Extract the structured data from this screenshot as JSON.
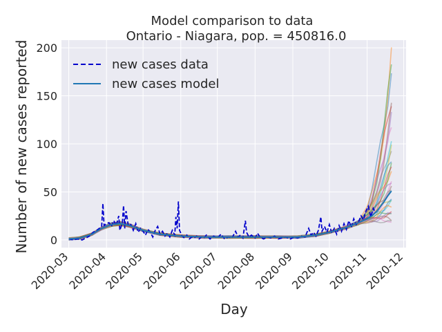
{
  "chart_data": {
    "type": "line",
    "title": "Model comparison to data",
    "subtitle": "Ontario - Niagara, pop. = 450816.0",
    "xlabel": "Day",
    "ylabel": "Number of new cases reported",
    "x_range": [
      "2020-02-24",
      "2020-12-03"
    ],
    "ylim": [
      -8,
      208
    ],
    "x_ticks": [
      "2020-03",
      "2020-04",
      "2020-05",
      "2020-06",
      "2020-07",
      "2020-08",
      "2020-09",
      "2020-10",
      "2020-11",
      "2020-12"
    ],
    "y_ticks": [
      0,
      50,
      100,
      150,
      200
    ],
    "grid": true,
    "legend_placement": "top-left",
    "colors": {
      "background": "#eaeaf2",
      "grid": "#ffffff",
      "data": "#0000cc",
      "model": "#1f77b4",
      "text": "#262626"
    },
    "ensemble_colors": [
      "#1f77b4",
      "#ff7f0e",
      "#2ca02c",
      "#d62728",
      "#9467bd",
      "#8c564b",
      "#e377c2",
      "#7f7f7f",
      "#bcbd22",
      "#17becf"
    ],
    "series": [
      {
        "name": "new cases data",
        "style": "dashed",
        "points": [
          [
            "2020-03-01",
            1
          ],
          [
            "2020-03-05",
            0
          ],
          [
            "2020-03-08",
            1
          ],
          [
            "2020-03-12",
            0
          ],
          [
            "2020-03-15",
            2
          ],
          [
            "2020-03-18",
            4
          ],
          [
            "2020-03-21",
            8
          ],
          [
            "2020-03-24",
            10
          ],
          [
            "2020-03-26",
            12
          ],
          [
            "2020-03-28",
            14
          ],
          [
            "2020-03-29",
            38
          ],
          [
            "2020-03-30",
            15
          ],
          [
            "2020-04-01",
            17
          ],
          [
            "2020-04-03",
            18
          ],
          [
            "2020-04-05",
            14
          ],
          [
            "2020-04-07",
            20
          ],
          [
            "2020-04-09",
            15
          ],
          [
            "2020-04-11",
            25
          ],
          [
            "2020-04-12",
            10
          ],
          [
            "2020-04-14",
            18
          ],
          [
            "2020-04-15",
            36
          ],
          [
            "2020-04-16",
            12
          ],
          [
            "2020-04-17",
            30
          ],
          [
            "2020-04-19",
            14
          ],
          [
            "2020-04-21",
            16
          ],
          [
            "2020-04-23",
            10
          ],
          [
            "2020-04-25",
            17
          ],
          [
            "2020-04-27",
            8
          ],
          [
            "2020-04-29",
            12
          ],
          [
            "2020-05-01",
            9
          ],
          [
            "2020-05-03",
            5
          ],
          [
            "2020-05-05",
            11
          ],
          [
            "2020-05-07",
            8
          ],
          [
            "2020-05-09",
            3
          ],
          [
            "2020-05-11",
            10
          ],
          [
            "2020-05-13",
            14
          ],
          [
            "2020-05-15",
            6
          ],
          [
            "2020-05-17",
            9
          ],
          [
            "2020-05-19",
            4
          ],
          [
            "2020-05-21",
            7
          ],
          [
            "2020-05-23",
            3
          ],
          [
            "2020-05-25",
            10
          ],
          [
            "2020-05-27",
            5
          ],
          [
            "2020-05-28",
            24
          ],
          [
            "2020-05-29",
            12
          ],
          [
            "2020-05-30",
            40
          ],
          [
            "2020-05-31",
            10
          ],
          [
            "2020-06-02",
            4
          ],
          [
            "2020-06-04",
            2
          ],
          [
            "2020-06-06",
            5
          ],
          [
            "2020-06-08",
            1
          ],
          [
            "2020-06-10",
            3
          ],
          [
            "2020-06-12",
            2
          ],
          [
            "2020-06-14",
            4
          ],
          [
            "2020-06-16",
            1
          ],
          [
            "2020-06-18",
            3
          ],
          [
            "2020-06-20",
            2
          ],
          [
            "2020-06-22",
            5
          ],
          [
            "2020-06-25",
            1
          ],
          [
            "2020-06-28",
            4
          ],
          [
            "2020-07-01",
            2
          ],
          [
            "2020-07-04",
            6
          ],
          [
            "2020-07-07",
            1
          ],
          [
            "2020-07-10",
            3
          ],
          [
            "2020-07-13",
            2
          ],
          [
            "2020-07-16",
            9
          ],
          [
            "2020-07-18",
            3
          ],
          [
            "2020-07-20",
            5
          ],
          [
            "2020-07-22",
            2
          ],
          [
            "2020-07-24",
            20
          ],
          [
            "2020-07-25",
            8
          ],
          [
            "2020-07-27",
            3
          ],
          [
            "2020-07-29",
            5
          ],
          [
            "2020-08-01",
            2
          ],
          [
            "2020-08-03",
            7
          ],
          [
            "2020-08-05",
            3
          ],
          [
            "2020-08-08",
            1
          ],
          [
            "2020-08-11",
            3
          ],
          [
            "2020-08-14",
            2
          ],
          [
            "2020-08-17",
            4
          ],
          [
            "2020-08-20",
            1
          ],
          [
            "2020-08-23",
            2
          ],
          [
            "2020-08-26",
            3
          ],
          [
            "2020-08-30",
            1
          ],
          [
            "2020-09-02",
            3
          ],
          [
            "2020-09-05",
            2
          ],
          [
            "2020-09-08",
            4
          ],
          [
            "2020-09-11",
            3
          ],
          [
            "2020-09-14",
            12
          ],
          [
            "2020-09-16",
            5
          ],
          [
            "2020-09-18",
            8
          ],
          [
            "2020-09-20",
            4
          ],
          [
            "2020-09-22",
            10
          ],
          [
            "2020-09-24",
            24
          ],
          [
            "2020-09-25",
            9
          ],
          [
            "2020-09-27",
            14
          ],
          [
            "2020-09-29",
            8
          ],
          [
            "2020-10-01",
            16
          ],
          [
            "2020-10-03",
            7
          ],
          [
            "2020-10-05",
            12
          ],
          [
            "2020-10-07",
            6
          ],
          [
            "2020-10-09",
            15
          ],
          [
            "2020-10-11",
            9
          ],
          [
            "2020-10-13",
            17
          ],
          [
            "2020-10-15",
            11
          ],
          [
            "2020-10-17",
            20
          ],
          [
            "2020-10-19",
            13
          ],
          [
            "2020-10-21",
            22
          ],
          [
            "2020-10-23",
            16
          ],
          [
            "2020-10-25",
            19
          ],
          [
            "2020-10-27",
            25
          ],
          [
            "2020-10-29",
            21
          ],
          [
            "2020-10-31",
            30
          ],
          [
            "2020-11-02",
            35
          ],
          [
            "2020-11-04",
            24
          ],
          [
            "2020-11-06",
            33
          ],
          [
            "2020-11-08",
            28
          ]
        ]
      },
      {
        "name": "new cases model",
        "style": "solid",
        "points": [
          [
            "2020-03-01",
            1
          ],
          [
            "2020-03-10",
            2
          ],
          [
            "2020-03-20",
            6
          ],
          [
            "2020-03-28",
            12
          ],
          [
            "2020-04-05",
            16
          ],
          [
            "2020-04-12",
            17
          ],
          [
            "2020-04-20",
            15
          ],
          [
            "2020-05-01",
            10
          ],
          [
            "2020-05-15",
            6
          ],
          [
            "2020-06-01",
            4
          ],
          [
            "2020-06-20",
            3
          ],
          [
            "2020-07-10",
            3
          ],
          [
            "2020-08-01",
            3
          ],
          [
            "2020-08-20",
            3
          ],
          [
            "2020-09-05",
            3
          ],
          [
            "2020-09-20",
            5
          ],
          [
            "2020-10-01",
            8
          ],
          [
            "2020-10-15",
            13
          ],
          [
            "2020-10-25",
            18
          ],
          [
            "2020-11-01",
            22
          ],
          [
            "2020-11-05",
            25
          ],
          [
            "2020-11-09",
            30
          ],
          [
            "2020-11-12",
            35
          ],
          [
            "2020-11-15",
            40
          ],
          [
            "2020-11-18",
            46
          ],
          [
            "2020-11-21",
            51
          ]
        ]
      }
    ],
    "model_ensemble_end_values": [
      192,
      185,
      170,
      155,
      140,
      128,
      115,
      105,
      98,
      92,
      85,
      80,
      75,
      70,
      65,
      60,
      55,
      50,
      46,
      42,
      38,
      35,
      31,
      28,
      25,
      22,
      20,
      18
    ]
  }
}
